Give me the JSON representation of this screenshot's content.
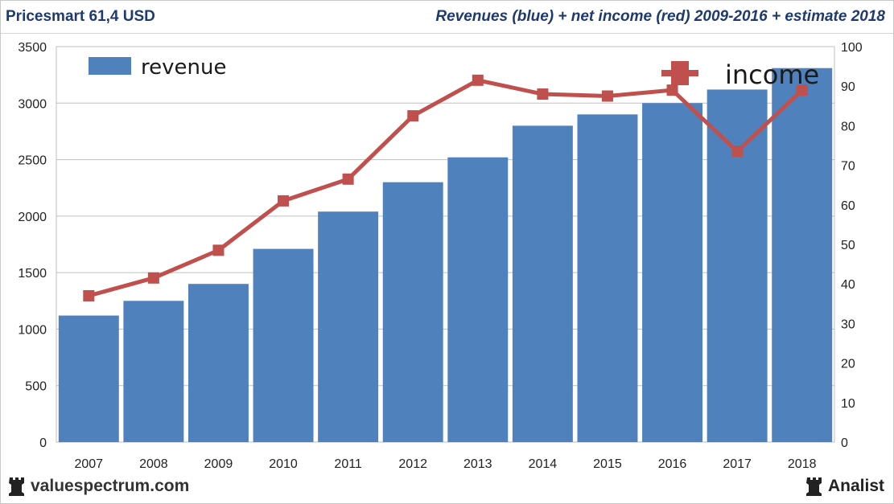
{
  "header": {
    "ticker": "Pricesmart 61,4 USD",
    "subtitle": "Revenues (blue) + net income (red) 2009-2016 + estimate 2018"
  },
  "footer": {
    "site": "valuespectrum.com",
    "brand": "Analist"
  },
  "colors": {
    "bar": "#4f81bd",
    "line": "#c0504d",
    "grid": "#bfbfbf",
    "text": "#1f3a6e"
  },
  "chart_data": {
    "type": "bar",
    "categories": [
      "2007",
      "2008",
      "2009",
      "2010",
      "2011",
      "2012",
      "2013",
      "2014",
      "2015",
      "2016",
      "2017",
      "2018"
    ],
    "series": [
      {
        "name": "revenue",
        "axis": "left",
        "type": "bar",
        "values": [
          1120,
          1250,
          1400,
          1710,
          2040,
          2300,
          2520,
          2800,
          2900,
          3000,
          3120,
          3310
        ]
      },
      {
        "name": "income",
        "axis": "right",
        "type": "line",
        "values": [
          37,
          41.5,
          48.5,
          61,
          66.5,
          82.5,
          91.5,
          88,
          87.5,
          89,
          73.5,
          89
        ]
      }
    ],
    "y_left": {
      "min": 0,
      "max": 3500,
      "ticks": [
        0,
        500,
        1000,
        1500,
        2000,
        2500,
        3000,
        3500
      ]
    },
    "y_right": {
      "min": 0,
      "max": 100,
      "ticks": [
        0,
        10,
        20,
        30,
        40,
        50,
        60,
        70,
        80,
        90,
        100
      ]
    },
    "legend": [
      {
        "label": "revenue",
        "position": "top-left"
      },
      {
        "label": "income",
        "position": "top-right"
      }
    ],
    "grid": true
  }
}
